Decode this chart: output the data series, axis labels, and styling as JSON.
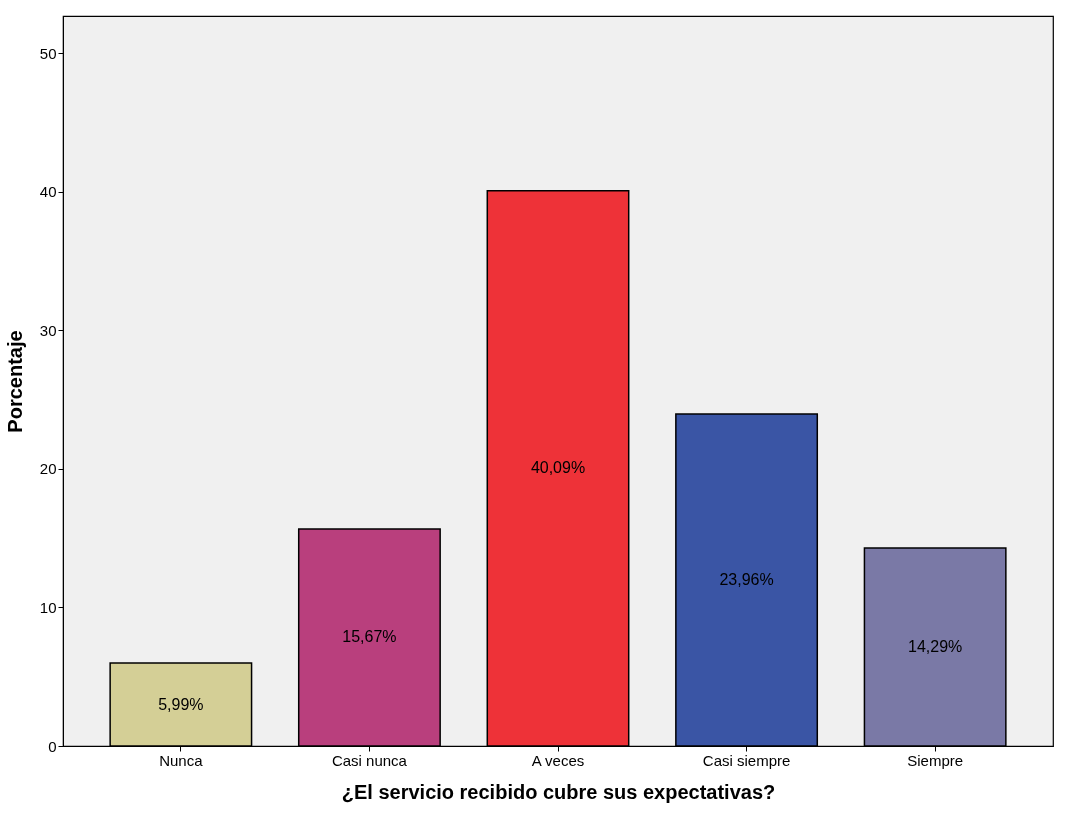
{
  "chart_data": {
    "type": "bar",
    "xlabel": "¿El servicio recibido cubre sus expectativas?",
    "ylabel": "Porcentaje",
    "categories": [
      "Nunca",
      "Casi nunca",
      "A veces",
      "Casi siempre",
      "Siempre"
    ],
    "values": [
      5.99,
      15.67,
      40.09,
      23.96,
      14.29
    ],
    "colors": [
      "#d4cf96",
      "#b93f7d",
      "#ee3238",
      "#3a55a5",
      "#7a79a6"
    ],
    "value_labels": [
      "5,99%",
      "15,67%",
      "40,09%",
      "23,96%",
      "14,29%"
    ],
    "ylim": [
      0,
      52.7
    ],
    "yticks": [
      0,
      10,
      20,
      30,
      40,
      50
    ],
    "grid": false,
    "legend": false
  }
}
